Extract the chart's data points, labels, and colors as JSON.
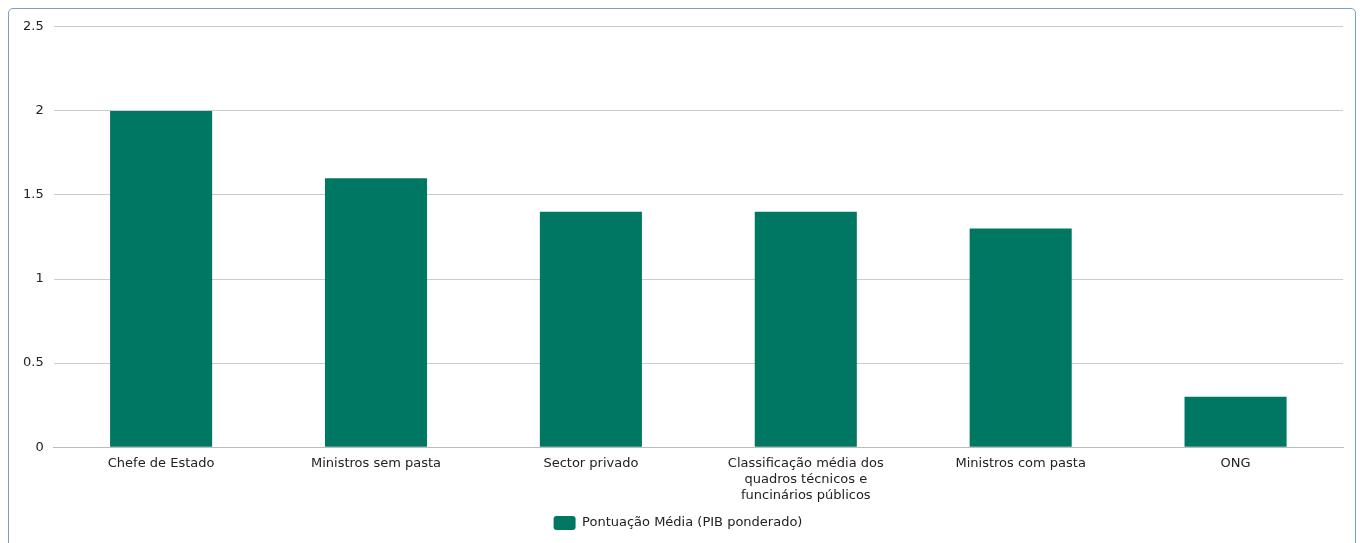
{
  "chart_data": {
    "type": "bar",
    "categories": [
      "Chefe de Estado",
      "Ministros sem pasta",
      "Sector privado",
      "Classificação média dos quadros técnicos e funcinários públicos",
      "Ministros com pasta",
      "ONG"
    ],
    "series": [
      {
        "name": "Pontuação Média (PIB ponderado)",
        "color": "#007762",
        "values": [
          2,
          1.6,
          1.4,
          1.4,
          1.3,
          0.3
        ]
      }
    ],
    "ylim": [
      0,
      2.5
    ],
    "yticks": [
      0,
      0.5,
      1,
      1.5,
      2,
      2.5
    ],
    "grid": "y",
    "legend": "bottom"
  }
}
